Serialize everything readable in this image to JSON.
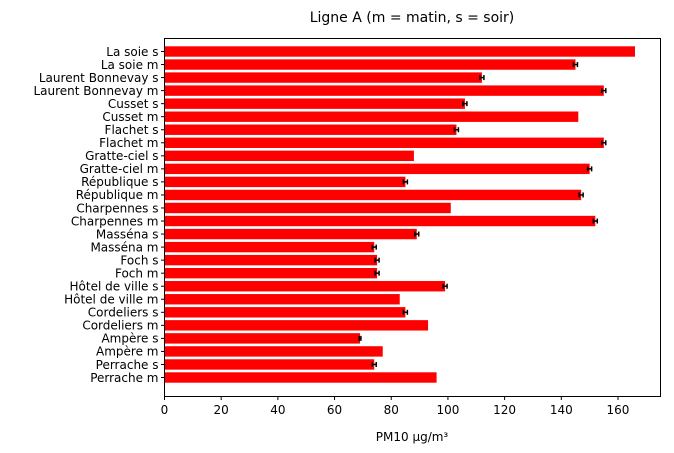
{
  "chart_data": {
    "type": "bar",
    "orientation": "horizontal",
    "title": "Ligne A (m = matin, s = soir)",
    "xlabel": "PM10 µg/m³",
    "ylabel": "",
    "xlim": [
      0,
      175
    ],
    "xticks": [
      0,
      20,
      40,
      60,
      80,
      100,
      120,
      140,
      160
    ],
    "bar_color": "#ff0000",
    "errorbar_color": "#000000",
    "categories": [
      "Perrache m",
      "Perrache s",
      "Ampère m",
      "Ampère s",
      "Cordeliers m",
      "Cordeliers s",
      "Hôtel de ville m",
      "Hôtel de ville s",
      "Foch m",
      "Foch s",
      "Masséna m",
      "Masséna s",
      "Charpennes m",
      "Charpennes s",
      "République m",
      "République s",
      "Gratte-ciel m",
      "Gratte-ciel s",
      "Flachet m",
      "Flachet s",
      "Cusset m",
      "Cusset s",
      "Laurent Bonnevay m",
      "Laurent Bonnevay s",
      "La soie m",
      "La soie s"
    ],
    "values": [
      96,
      74,
      77,
      69,
      93,
      85,
      83,
      99,
      75,
      75,
      74,
      89,
      152,
      101,
      147,
      85,
      150,
      88,
      155,
      103,
      146,
      106,
      155,
      112,
      145,
      166
    ],
    "errors": [
      0,
      0.7,
      0,
      0.3,
      0,
      0.7,
      0,
      0.7,
      0.7,
      0.7,
      0.7,
      0.7,
      0.7,
      0,
      0.7,
      0.7,
      0.7,
      0,
      0.7,
      0.7,
      0,
      0.7,
      0.7,
      0.7,
      0.7,
      0
    ]
  }
}
